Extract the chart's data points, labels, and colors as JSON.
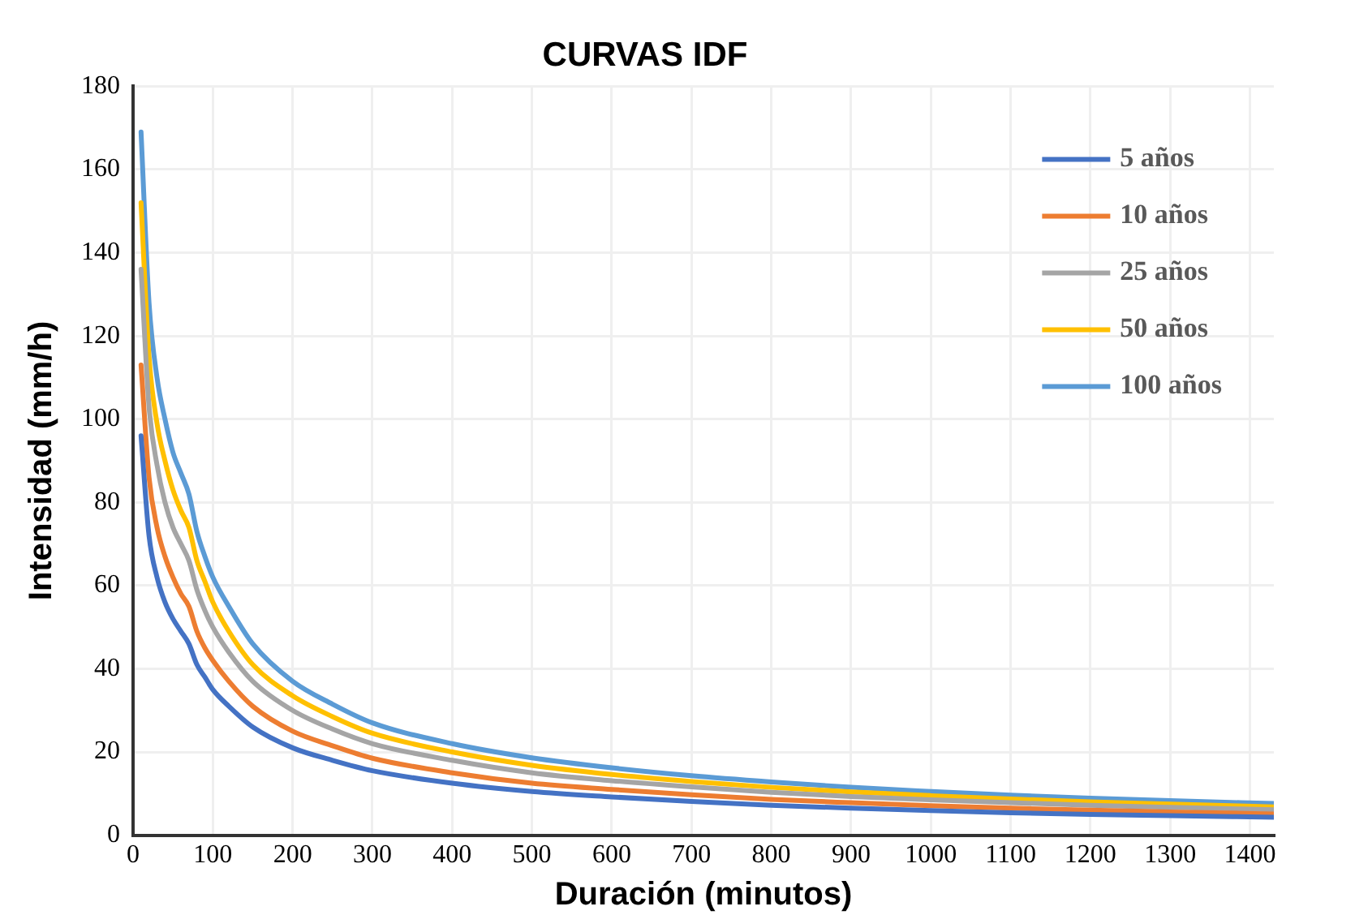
{
  "chart_data": {
    "type": "line",
    "title": "CURVAS IDF",
    "xlabel": "Duración (minutos)",
    "ylabel": "Intensidad (mm/h)",
    "x": [
      10,
      20,
      30,
      40,
      50,
      60,
      70,
      80,
      90,
      100,
      120,
      150,
      200,
      250,
      300,
      400,
      500,
      600,
      700,
      800,
      900,
      1000,
      1100,
      1200,
      1300,
      1430
    ],
    "xlim": [
      0,
      1430
    ],
    "xticks": [
      0,
      100,
      200,
      300,
      400,
      500,
      600,
      700,
      800,
      900,
      1000,
      1100,
      1200,
      1300,
      1400
    ],
    "ylim": [
      0,
      180
    ],
    "yticks": [
      0,
      20,
      40,
      60,
      80,
      100,
      120,
      140,
      160,
      180
    ],
    "grid": true,
    "legend": "top right",
    "marker": "none",
    "line_style": "solid",
    "series": [
      {
        "name": "5 años",
        "color": "#4472c4",
        "values": [
          96,
          72,
          62,
          56,
          52,
          49,
          46,
          41,
          38,
          35,
          31,
          26,
          21,
          18,
          15.5,
          12.5,
          10.5,
          9.2,
          8.1,
          7.2,
          6.5,
          5.9,
          5.4,
          5.0,
          4.7,
          4.3
        ]
      },
      {
        "name": "10 años",
        "color": "#ed7d31",
        "values": [
          113,
          86,
          74,
          67,
          62,
          58,
          55,
          49,
          45,
          42,
          37,
          31,
          25,
          21.5,
          18.5,
          15,
          12.5,
          11,
          9.7,
          8.6,
          7.8,
          7.1,
          6.5,
          6.0,
          5.6,
          5.1
        ]
      },
      {
        "name": "25 años",
        "color": "#a5a5a5",
        "values": [
          136,
          103,
          89,
          80,
          74,
          70,
          66,
          59,
          54,
          50,
          44,
          37,
          30,
          25.5,
          22,
          18,
          15,
          13.1,
          11.6,
          10.3,
          9.3,
          8.5,
          7.8,
          7.2,
          6.7,
          6.1
        ]
      },
      {
        "name": "50 años",
        "color": "#ffc000",
        "values": [
          152,
          115,
          99,
          90,
          83,
          78,
          74,
          66,
          61,
          56,
          49,
          41,
          33.5,
          28.5,
          24.5,
          20,
          16.8,
          14.6,
          12.9,
          11.5,
          10.4,
          9.5,
          8.7,
          8.0,
          7.5,
          6.8
        ]
      },
      {
        "name": "100 años",
        "color": "#5b9bd5",
        "values": [
          169,
          128,
          110,
          100,
          92,
          87,
          82,
          73,
          67,
          62,
          55,
          46,
          37,
          31.5,
          27,
          22,
          18.6,
          16.2,
          14.3,
          12.8,
          11.5,
          10.5,
          9.6,
          8.9,
          8.3,
          7.6
        ]
      }
    ]
  }
}
